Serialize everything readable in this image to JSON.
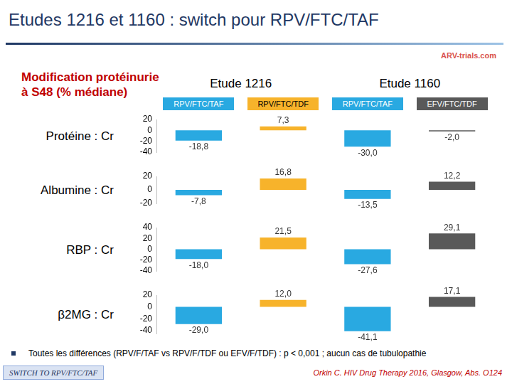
{
  "header": {
    "title": "Etudes 1216 et 1160 : switch pour RPV/FTC/TAF",
    "logo": "ARV-trials.com",
    "measure": [
      "Modification protéinurie",
      "à S48 (% médiane)"
    ],
    "studies": [
      {
        "name": "Etude 1216",
        "arms": [
          "RPV/FTC/TAF",
          "RPV/FTC/TDF"
        ]
      },
      {
        "name": "Etude 1160",
        "arms": [
          "RPV/FTC/TAF",
          "EFV/FTC/TDF"
        ]
      }
    ]
  },
  "chart_data": [
    {
      "type": "bar",
      "title": "Protéine : Cr",
      "categories": [
        null,
        null,
        null,
        null
      ],
      "values": [
        -18.8,
        7.3,
        -30.0,
        -2.0
      ],
      "value_labels": [
        "-18,8",
        "7,3",
        "-30,0",
        "-2,0"
      ],
      "colors": [
        "#29a9e1",
        "#f7b32b",
        "#29a9e1",
        "#595959"
      ],
      "ylim": [
        -40,
        20
      ],
      "yticks": [
        -40,
        -20,
        0,
        20
      ],
      "grid": false,
      "data_labels": true,
      "tick_labels": "y"
    },
    {
      "type": "bar",
      "title": "Albumine : Cr",
      "categories": [
        null,
        null,
        null,
        null
      ],
      "values": [
        -7.8,
        16.8,
        -13.5,
        12.2
      ],
      "value_labels": [
        "-7,8",
        "16,8",
        "-13,5",
        "12,2"
      ],
      "colors": [
        "#29a9e1",
        "#f7b32b",
        "#29a9e1",
        "#595959"
      ],
      "ylim": [
        -20,
        20
      ],
      "yticks": [
        -20,
        0,
        20
      ],
      "grid": false,
      "data_labels": true,
      "tick_labels": "y"
    },
    {
      "type": "bar",
      "title": "RBP : Cr",
      "categories": [
        null,
        null,
        null,
        null
      ],
      "values": [
        -18.0,
        21.5,
        -27.6,
        29.1
      ],
      "value_labels": [
        "-18,0",
        "21,5",
        "-27,6",
        "29,1"
      ],
      "colors": [
        "#29a9e1",
        "#f7b32b",
        "#29a9e1",
        "#595959"
      ],
      "ylim": [
        -40,
        40
      ],
      "yticks": [
        -40,
        -20,
        0,
        20,
        40
      ],
      "grid": false,
      "data_labels": true,
      "tick_labels": "y"
    },
    {
      "type": "bar",
      "title": "β2MG : Cr",
      "categories": [
        null,
        null,
        null,
        null
      ],
      "values": [
        -29.0,
        12.0,
        -41.1,
        17.1
      ],
      "value_labels": [
        "-29,0",
        "12,0",
        "-41,1",
        "17,1"
      ],
      "colors": [
        "#29a9e1",
        "#f7b32b",
        "#29a9e1",
        "#595959"
      ],
      "ylim": [
        -45,
        20
      ],
      "yticks": [
        -40,
        -20,
        0,
        20
      ],
      "grid": false,
      "data_labels": true,
      "tick_labels": "y"
    }
  ],
  "footer": {
    "note": "Toutes les différences (RPV/F/TAF vs RPV/F/TDF ou EFV/F/TDF) : p < 0,001 ; aucun cas de tubulopathie",
    "tag": "SWITCH TO RPV/FTC/TAF",
    "source": "Orkin C. HIV Drug Therapy 2016, Glasgow, Abs. O124"
  }
}
